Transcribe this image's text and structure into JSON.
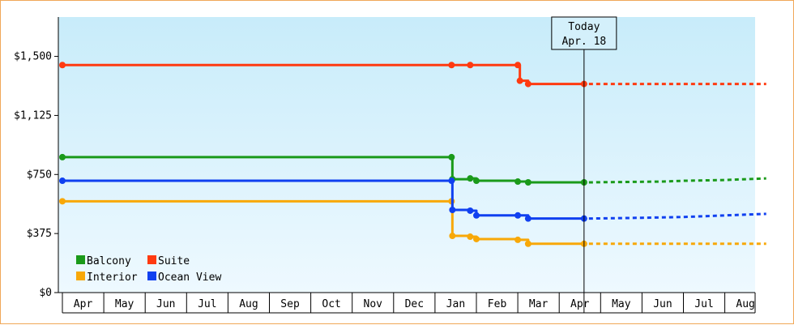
{
  "chart_data": {
    "type": "line",
    "title": "",
    "xlabel": "",
    "ylabel": "",
    "ylim": [
      0,
      1750
    ],
    "y_ticks": [
      {
        "value": 0,
        "label": "$0"
      },
      {
        "value": 375,
        "label": "$375"
      },
      {
        "value": 750,
        "label": "$750"
      },
      {
        "value": 1125,
        "label": "$1,125"
      },
      {
        "value": 1500,
        "label": "$1,500"
      }
    ],
    "x_range": [
      0,
      17
    ],
    "x_tick_labels": [
      "Apr",
      "May",
      "Jun",
      "Jul",
      "Aug",
      "Sep",
      "Oct",
      "Nov",
      "Dec",
      "Jan",
      "Feb",
      "Mar",
      "Apr",
      "May",
      "Jun",
      "Jul",
      "Aug"
    ],
    "today": {
      "line1": "Today",
      "line2": "Apr. 18",
      "x": 12.6
    },
    "grid": false,
    "legend_position": "bottom-left",
    "series": [
      {
        "name": "Balcony",
        "color": "#1a9a1a",
        "actual": [
          [
            0,
            860
          ],
          [
            9.4,
            860
          ],
          [
            9.42,
            720
          ],
          [
            9.85,
            725
          ],
          [
            10.0,
            710
          ],
          [
            11.0,
            705
          ],
          [
            11.25,
            700
          ],
          [
            12.6,
            700
          ]
        ],
        "projected": [
          [
            12.6,
            700
          ],
          [
            14.5,
            705
          ],
          [
            15.0,
            710
          ],
          [
            16.0,
            715
          ],
          [
            17.0,
            725
          ]
        ]
      },
      {
        "name": "Suite",
        "color": "#ff3a10",
        "actual": [
          [
            0,
            1445
          ],
          [
            9.4,
            1445
          ],
          [
            9.85,
            1445
          ],
          [
            11.0,
            1445
          ],
          [
            11.05,
            1345
          ],
          [
            11.25,
            1325
          ],
          [
            12.6,
            1325
          ]
        ],
        "projected": [
          [
            12.6,
            1325
          ],
          [
            17.0,
            1325
          ]
        ]
      },
      {
        "name": "Interior",
        "color": "#f8a808",
        "actual": [
          [
            0,
            580
          ],
          [
            9.4,
            580
          ],
          [
            9.42,
            360
          ],
          [
            9.85,
            355
          ],
          [
            10.0,
            340
          ],
          [
            11.0,
            335
          ],
          [
            11.25,
            310
          ],
          [
            12.6,
            310
          ]
        ],
        "projected": [
          [
            12.6,
            310
          ],
          [
            17.0,
            310
          ]
        ]
      },
      {
        "name": "Ocean View",
        "color": "#1040f0",
        "actual": [
          [
            0,
            710
          ],
          [
            9.4,
            710
          ],
          [
            9.42,
            525
          ],
          [
            9.85,
            520
          ],
          [
            10.0,
            490
          ],
          [
            11.0,
            490
          ],
          [
            11.25,
            470
          ],
          [
            12.6,
            470
          ]
        ],
        "projected": [
          [
            12.6,
            470
          ],
          [
            14.0,
            475
          ],
          [
            15.0,
            480
          ],
          [
            16.0,
            490
          ],
          [
            17.0,
            500
          ]
        ]
      }
    ]
  }
}
